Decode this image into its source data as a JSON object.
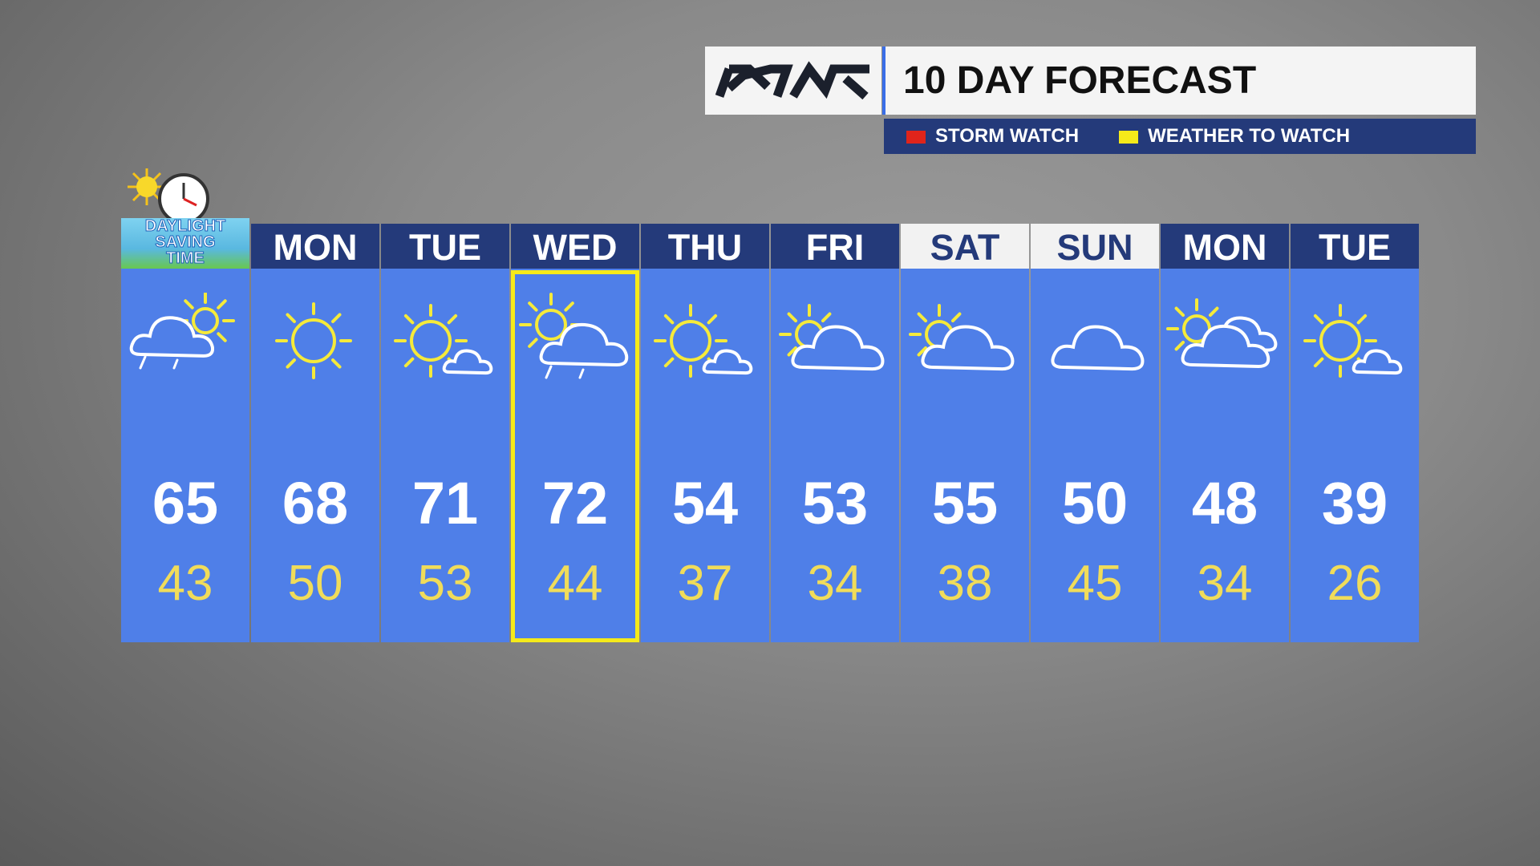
{
  "header": {
    "title": "10 DAY FORECAST"
  },
  "legend": [
    {
      "label": "STORM WATCH",
      "color": "#e0241b"
    },
    {
      "label": "WEATHER TO WATCH",
      "color": "#f5ea1a"
    }
  ],
  "badge": {
    "lines": [
      "DAYLIGHT",
      "SAVING",
      "TIME"
    ]
  },
  "days": [
    {
      "day": "MON",
      "high": 68,
      "low": 50
    },
    {
      "day": "TUE",
      "high": 71,
      "low": 53
    },
    {
      "day": "WED",
      "high": 72,
      "low": 44
    },
    {
      "day": "THU",
      "high": 54,
      "low": 37
    },
    {
      "day": "FRI",
      "high": 53,
      "low": 34
    },
    {
      "day": "SAT",
      "high": 55,
      "low": 38
    },
    {
      "day": "SUN",
      "high": 50,
      "low": 45
    },
    {
      "day": "MON",
      "high": 48,
      "low": 34
    },
    {
      "day": "TUE",
      "high": 39,
      "low": 26
    }
  ],
  "today": {
    "high": 65,
    "low": 43
  }
}
